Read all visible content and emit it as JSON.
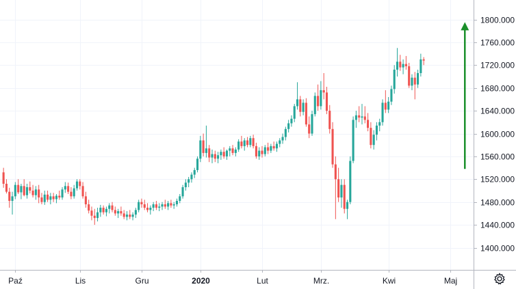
{
  "chart_data": {
    "type": "candlestick",
    "title": "",
    "xlabel": "",
    "ylabel": "",
    "ylim": [
      1360,
      1840
    ],
    "y_ticks": [
      1400,
      1440,
      1480,
      1520,
      1560,
      1600,
      1640,
      1680,
      1720,
      1760,
      1800
    ],
    "y_tick_labels": [
      "1400.000",
      "1440.000",
      "1480.000",
      "1520.000",
      "1560.000",
      "1600.000",
      "1640.000",
      "1680.000",
      "1720.000",
      "1760.000",
      "1800.000"
    ],
    "x_ticks": [
      {
        "label": "Paź",
        "index": 4,
        "bold": false
      },
      {
        "label": "Lis",
        "index": 26,
        "bold": false
      },
      {
        "label": "Gru",
        "index": 47,
        "bold": false
      },
      {
        "label": "2020",
        "index": 67,
        "bold": true
      },
      {
        "label": "Lut",
        "index": 88,
        "bold": false
      },
      {
        "label": "Mrz.",
        "index": 108,
        "bold": false
      },
      {
        "label": "Kwi",
        "index": 131,
        "bold": false
      },
      {
        "label": "Maj",
        "index": 152,
        "bold": false
      }
    ],
    "total_slots": 160,
    "up_color": "#26a69a",
    "down_color": "#ef5350",
    "grid": true,
    "annotations": [
      {
        "type": "arrow",
        "color": "#1a8f2a",
        "index": 157,
        "from": 1538,
        "to": 1793
      }
    ],
    "candles": [
      [
        1532,
        1540,
        1505,
        1512
      ],
      [
        1512,
        1520,
        1495,
        1498
      ],
      [
        1498,
        1505,
        1470,
        1482
      ],
      [
        1482,
        1498,
        1458,
        1490
      ],
      [
        1490,
        1515,
        1485,
        1510
      ],
      [
        1510,
        1520,
        1494,
        1497
      ],
      [
        1497,
        1512,
        1485,
        1508
      ],
      [
        1508,
        1520,
        1490,
        1492
      ],
      [
        1492,
        1512,
        1486,
        1506
      ],
      [
        1506,
        1516,
        1495,
        1500
      ],
      [
        1500,
        1510,
        1488,
        1492
      ],
      [
        1492,
        1508,
        1484,
        1502
      ],
      [
        1502,
        1510,
        1478,
        1488
      ],
      [
        1488,
        1496,
        1476,
        1480
      ],
      [
        1480,
        1500,
        1475,
        1493
      ],
      [
        1493,
        1500,
        1480,
        1484
      ],
      [
        1484,
        1496,
        1476,
        1490
      ],
      [
        1490,
        1496,
        1480,
        1485
      ],
      [
        1485,
        1494,
        1478,
        1491
      ],
      [
        1491,
        1500,
        1484,
        1488
      ],
      [
        1488,
        1506,
        1484,
        1502
      ],
      [
        1502,
        1515,
        1496,
        1508
      ],
      [
        1508,
        1514,
        1494,
        1498
      ],
      [
        1498,
        1506,
        1485,
        1490
      ],
      [
        1490,
        1510,
        1486,
        1504
      ],
      [
        1504,
        1520,
        1500,
        1516
      ],
      [
        1516,
        1520,
        1502,
        1508
      ],
      [
        1508,
        1515,
        1486,
        1490
      ],
      [
        1490,
        1498,
        1470,
        1476
      ],
      [
        1476,
        1484,
        1460,
        1465
      ],
      [
        1465,
        1472,
        1448,
        1456
      ],
      [
        1456,
        1468,
        1440,
        1452
      ],
      [
        1452,
        1470,
        1446,
        1462
      ],
      [
        1462,
        1475,
        1454,
        1470
      ],
      [
        1470,
        1474,
        1458,
        1462
      ],
      [
        1462,
        1472,
        1455,
        1468
      ],
      [
        1468,
        1478,
        1460,
        1474
      ],
      [
        1474,
        1480,
        1462,
        1466
      ],
      [
        1466,
        1472,
        1456,
        1460
      ],
      [
        1460,
        1468,
        1452,
        1464
      ],
      [
        1464,
        1472,
        1456,
        1460
      ],
      [
        1460,
        1466,
        1450,
        1454
      ],
      [
        1454,
        1464,
        1448,
        1458
      ],
      [
        1458,
        1466,
        1450,
        1454
      ],
      [
        1454,
        1462,
        1448,
        1458
      ],
      [
        1458,
        1470,
        1452,
        1466
      ],
      [
        1466,
        1484,
        1462,
        1480
      ],
      [
        1480,
        1486,
        1470,
        1476
      ],
      [
        1476,
        1484,
        1466,
        1470
      ],
      [
        1470,
        1478,
        1462,
        1466
      ],
      [
        1466,
        1474,
        1458,
        1470
      ],
      [
        1470,
        1480,
        1464,
        1476
      ],
      [
        1476,
        1482,
        1466,
        1470
      ],
      [
        1470,
        1478,
        1464,
        1472
      ],
      [
        1472,
        1480,
        1466,
        1476
      ],
      [
        1476,
        1484,
        1468,
        1472
      ],
      [
        1472,
        1482,
        1466,
        1478
      ],
      [
        1478,
        1484,
        1470,
        1474
      ],
      [
        1474,
        1480,
        1468,
        1476
      ],
      [
        1476,
        1486,
        1472,
        1482
      ],
      [
        1482,
        1494,
        1478,
        1490
      ],
      [
        1490,
        1510,
        1486,
        1506
      ],
      [
        1506,
        1520,
        1500,
        1514
      ],
      [
        1514,
        1524,
        1506,
        1520
      ],
      [
        1520,
        1532,
        1514,
        1528
      ],
      [
        1528,
        1540,
        1522,
        1536
      ],
      [
        1536,
        1560,
        1532,
        1556
      ],
      [
        1556,
        1596,
        1550,
        1588
      ],
      [
        1588,
        1600,
        1560,
        1566
      ],
      [
        1566,
        1614,
        1558,
        1574
      ],
      [
        1574,
        1580,
        1550,
        1558
      ],
      [
        1558,
        1572,
        1548,
        1564
      ],
      [
        1564,
        1570,
        1550,
        1556
      ],
      [
        1556,
        1568,
        1548,
        1562
      ],
      [
        1562,
        1572,
        1554,
        1568
      ],
      [
        1568,
        1576,
        1556,
        1560
      ],
      [
        1560,
        1572,
        1554,
        1570
      ],
      [
        1570,
        1578,
        1560,
        1574
      ],
      [
        1574,
        1580,
        1562,
        1566
      ],
      [
        1566,
        1576,
        1560,
        1572
      ],
      [
        1572,
        1590,
        1568,
        1586
      ],
      [
        1586,
        1596,
        1574,
        1578
      ],
      [
        1578,
        1592,
        1570,
        1588
      ],
      [
        1588,
        1594,
        1576,
        1580
      ],
      [
        1580,
        1596,
        1576,
        1592
      ],
      [
        1592,
        1598,
        1574,
        1578
      ],
      [
        1578,
        1584,
        1556,
        1560
      ],
      [
        1560,
        1576,
        1554,
        1570
      ],
      [
        1570,
        1578,
        1558,
        1564
      ],
      [
        1564,
        1580,
        1560,
        1576
      ],
      [
        1576,
        1584,
        1564,
        1570
      ],
      [
        1570,
        1582,
        1566,
        1578
      ],
      [
        1578,
        1586,
        1570,
        1574
      ],
      [
        1574,
        1586,
        1568,
        1582
      ],
      [
        1582,
        1592,
        1576,
        1588
      ],
      [
        1588,
        1600,
        1582,
        1594
      ],
      [
        1594,
        1612,
        1588,
        1608
      ],
      [
        1608,
        1624,
        1602,
        1618
      ],
      [
        1618,
        1632,
        1612,
        1626
      ],
      [
        1626,
        1652,
        1620,
        1648
      ],
      [
        1648,
        1690,
        1642,
        1660
      ],
      [
        1660,
        1666,
        1630,
        1638
      ],
      [
        1638,
        1660,
        1632,
        1654
      ],
      [
        1654,
        1662,
        1612,
        1616
      ],
      [
        1616,
        1630,
        1592,
        1600
      ],
      [
        1600,
        1640,
        1596,
        1634
      ],
      [
        1634,
        1672,
        1630,
        1666
      ],
      [
        1666,
        1686,
        1640,
        1648
      ],
      [
        1648,
        1692,
        1642,
        1676
      ],
      [
        1676,
        1706,
        1660,
        1672
      ],
      [
        1672,
        1682,
        1634,
        1640
      ],
      [
        1640,
        1650,
        1600,
        1608
      ],
      [
        1608,
        1620,
        1540,
        1546
      ],
      [
        1546,
        1560,
        1450,
        1520
      ],
      [
        1520,
        1540,
        1480,
        1488
      ],
      [
        1488,
        1520,
        1470,
        1510
      ],
      [
        1510,
        1520,
        1460,
        1468
      ],
      [
        1468,
        1484,
        1450,
        1480
      ],
      [
        1480,
        1560,
        1476,
        1552
      ],
      [
        1552,
        1630,
        1548,
        1624
      ],
      [
        1624,
        1640,
        1610,
        1632
      ],
      [
        1632,
        1648,
        1620,
        1628
      ],
      [
        1628,
        1652,
        1616,
        1630
      ],
      [
        1630,
        1648,
        1618,
        1624
      ],
      [
        1624,
        1636,
        1604,
        1610
      ],
      [
        1610,
        1620,
        1574,
        1580
      ],
      [
        1580,
        1606,
        1572,
        1598
      ],
      [
        1598,
        1620,
        1588,
        1614
      ],
      [
        1614,
        1626,
        1604,
        1620
      ],
      [
        1620,
        1660,
        1614,
        1654
      ],
      [
        1654,
        1676,
        1636,
        1642
      ],
      [
        1642,
        1664,
        1636,
        1656
      ],
      [
        1656,
        1684,
        1650,
        1678
      ],
      [
        1678,
        1720,
        1670,
        1712
      ],
      [
        1712,
        1750,
        1700,
        1726
      ],
      [
        1726,
        1738,
        1710,
        1716
      ],
      [
        1716,
        1730,
        1704,
        1722
      ],
      [
        1722,
        1736,
        1712,
        1718
      ],
      [
        1718,
        1724,
        1680,
        1684
      ],
      [
        1684,
        1704,
        1676,
        1698
      ],
      [
        1698,
        1708,
        1660,
        1686
      ],
      [
        1686,
        1712,
        1680,
        1706
      ],
      [
        1706,
        1740,
        1700,
        1730
      ],
      [
        1730,
        1734,
        1720,
        1728
      ]
    ]
  }
}
